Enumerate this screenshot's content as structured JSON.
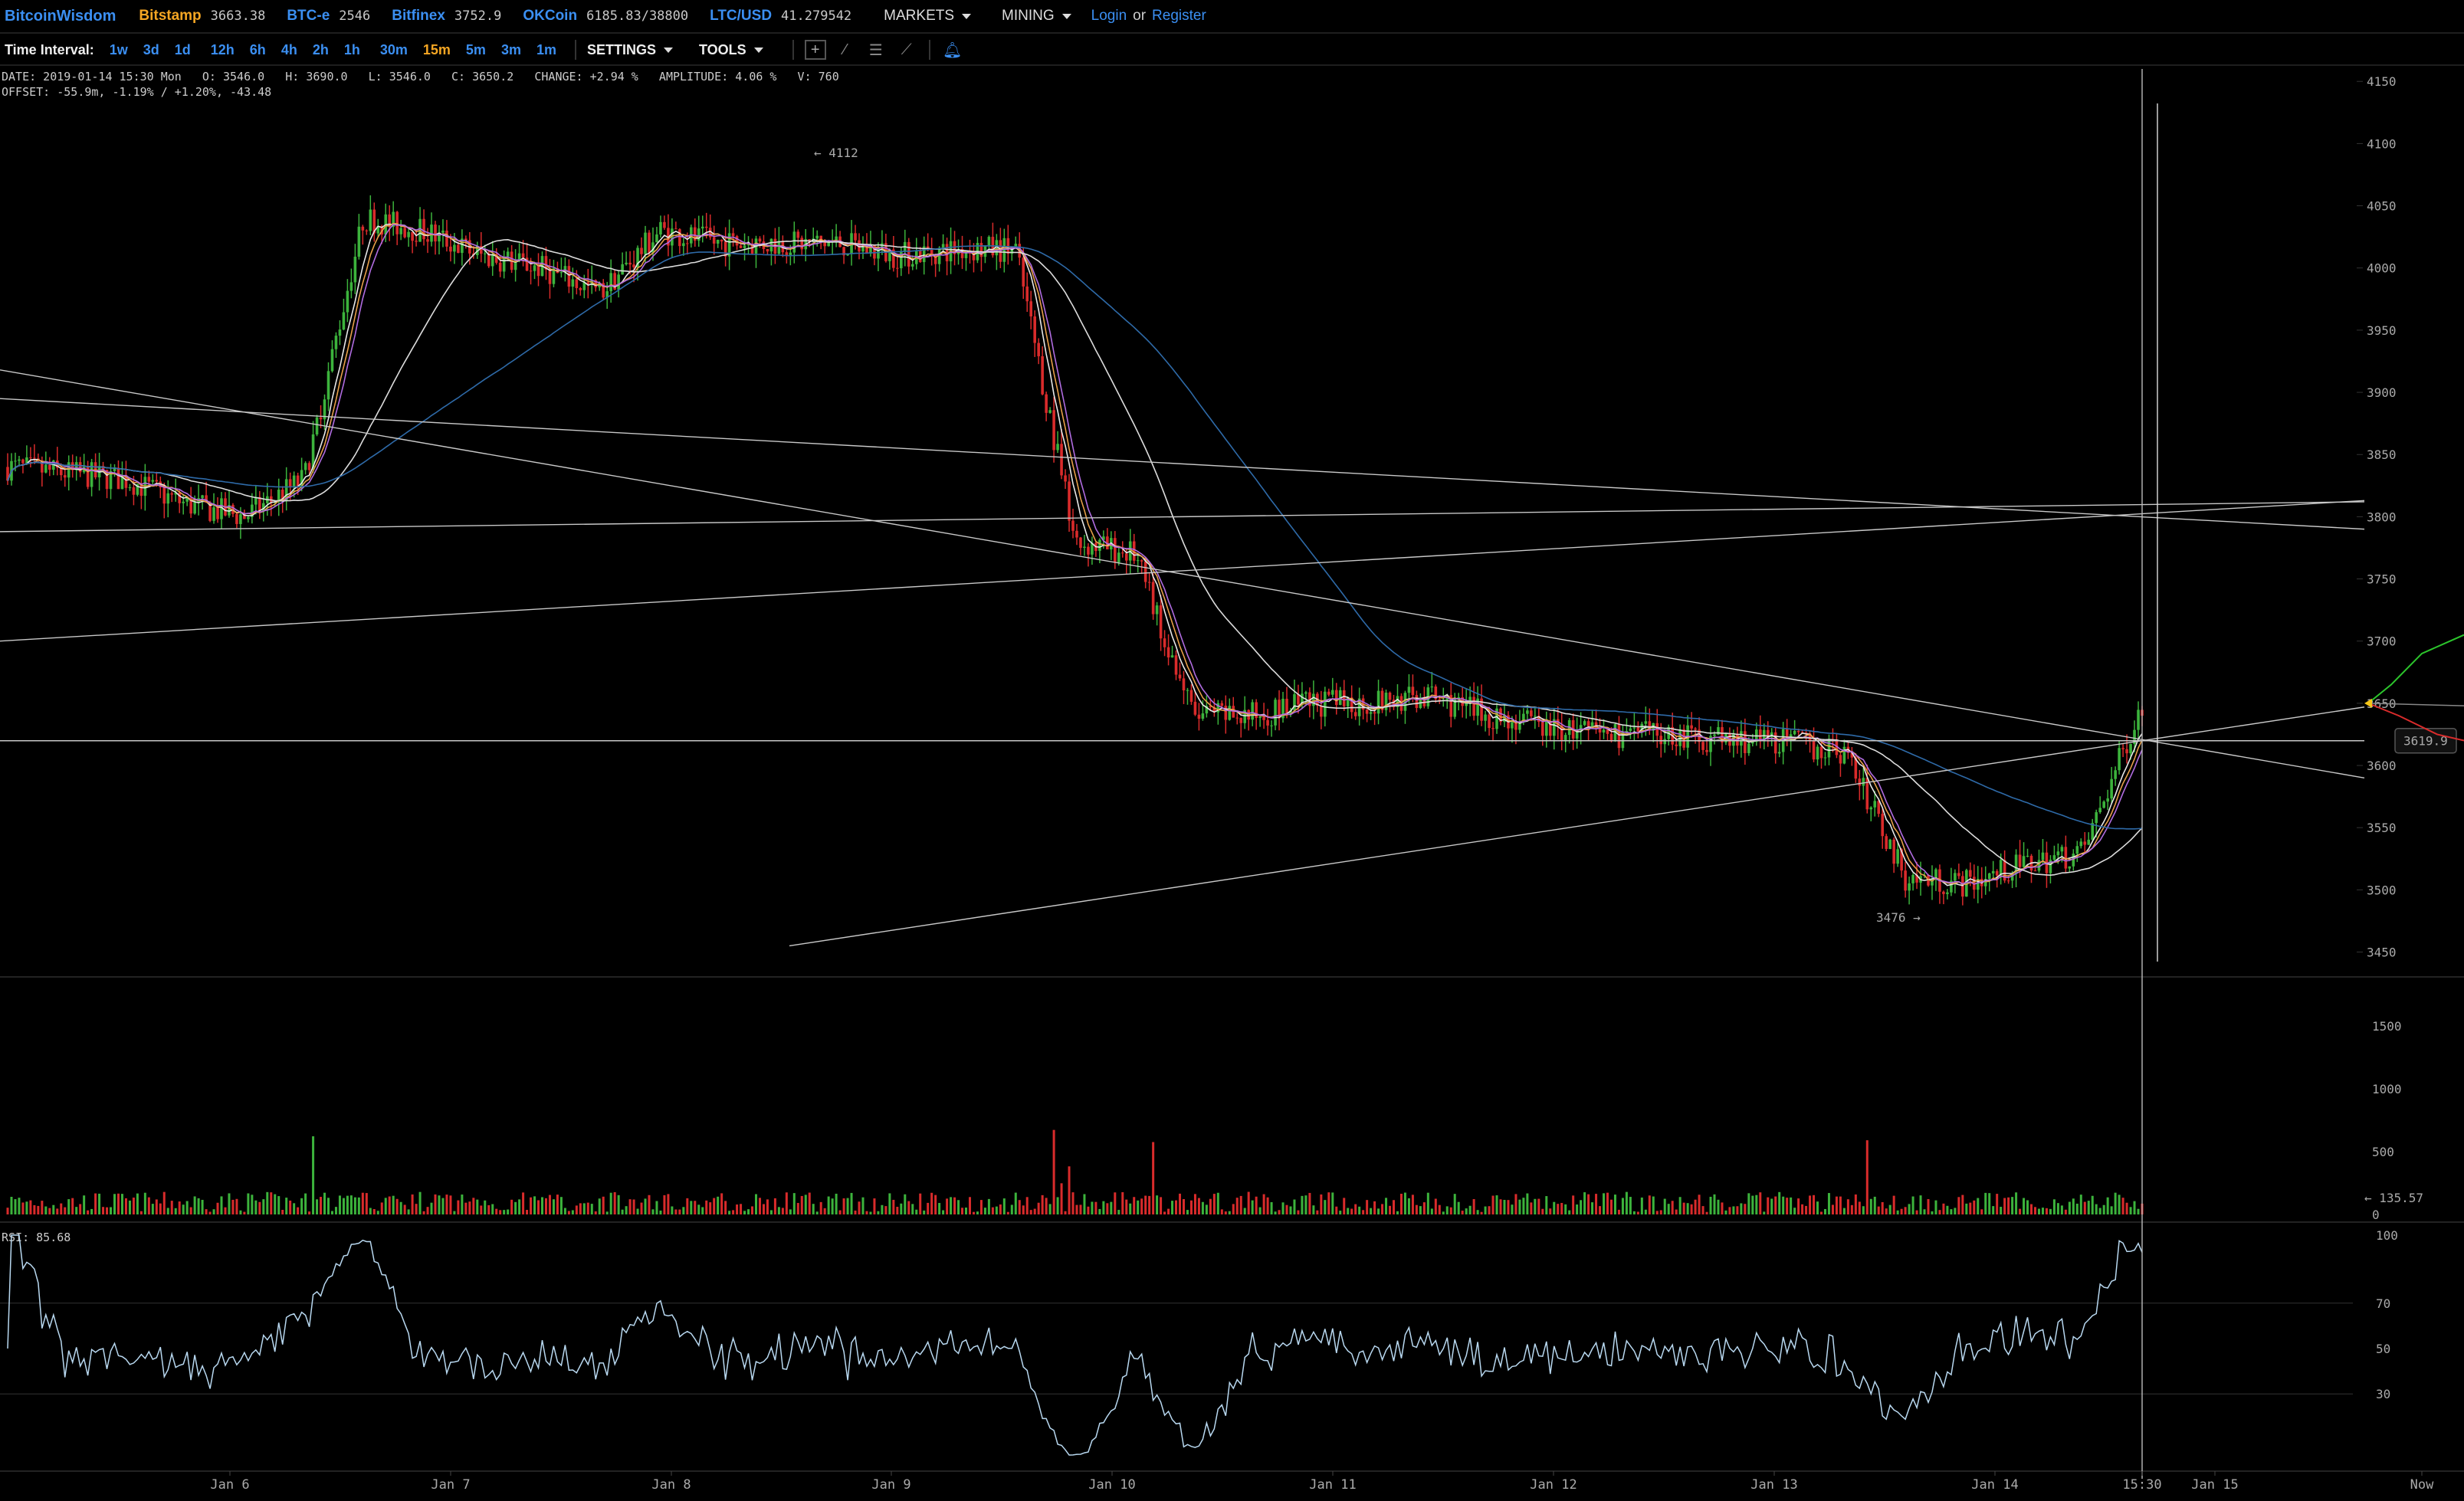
{
  "brand": "BitcoinWisdom",
  "tickers": [
    {
      "exchange": "Bitstamp",
      "price": "3663.38",
      "active": true
    },
    {
      "exchange": "BTC-e",
      "price": "2546",
      "active": false
    },
    {
      "exchange": "Bitfinex",
      "price": "3752.9",
      "active": false
    },
    {
      "exchange": "OKCoin",
      "price": "6185.83/38800",
      "active": false
    },
    {
      "exchange": "LTC/USD",
      "price": "41.279542",
      "active": false
    }
  ],
  "menus": {
    "markets": "MARKETS",
    "mining": "MINING",
    "login": "Login",
    "or": "or",
    "register": "Register"
  },
  "toolbar": {
    "label": "Time Interval:",
    "intervals": [
      "1w",
      "3d",
      "1d",
      "12h",
      "6h",
      "4h",
      "2h",
      "1h",
      "30m",
      "15m",
      "5m",
      "3m",
      "1m"
    ],
    "active_interval": "15m",
    "settings": "SETTINGS",
    "tools": "TOOLS"
  },
  "info": {
    "line1": "DATE: 2019-01-14 15:30 Mon   O: 3546.0   H: 3690.0   L: 3546.0   C: 3650.2   CHANGE: +2.94 %   AMPLITUDE: 4.06 %   V: 760",
    "line2": "OFFSET: -55.9m, -1.19% / +1.20%, -43.48"
  },
  "rsi_label": "RSI: 85.68",
  "price_axis": [
    "4150",
    "4100",
    "4050",
    "4000",
    "3950",
    "3900",
    "3850",
    "3800",
    "3750",
    "3700",
    "3650",
    "3600",
    "3550",
    "3500",
    "3450"
  ],
  "volume_axis": [
    "1500",
    "1000",
    "500",
    "0"
  ],
  "rsi_axis": [
    "100",
    "70",
    "50",
    "30"
  ],
  "date_axis": [
    "Jan 6",
    "Jan 7",
    "Jan 8",
    "Jan 9",
    "Jan 10",
    "Jan 11",
    "Jan 12",
    "Jan 13",
    "Jan 14",
    "15:30",
    "Jan 15",
    "Now"
  ],
  "annotations": {
    "high": "← 4112",
    "low": "3476 →",
    "crosshair_price": "3619.9",
    "volume_marker": "← 135.57"
  },
  "colors": {
    "accent": "#3b8ff2",
    "active": "#f5a623",
    "up": "#3cb33c",
    "down": "#d92b2b",
    "bg": "#000000"
  },
  "chart_data": {
    "type": "line",
    "ylim": [
      3430,
      4160
    ],
    "x": [
      "Jan 5 18:00",
      "Jan 6 00:00",
      "Jan 6 06:00",
      "Jan 6 12:00",
      "Jan 6 18:00",
      "Jan 7 00:00",
      "Jan 7 06:00",
      "Jan 7 12:00",
      "Jan 7 18:00",
      "Jan 8 00:00",
      "Jan 8 06:00",
      "Jan 8 12:00",
      "Jan 8 18:00",
      "Jan 9 00:00",
      "Jan 9 06:00",
      "Jan 9 12:00",
      "Jan 9 18:00",
      "Jan 10 00:00",
      "Jan 10 06:00",
      "Jan 10 12:00",
      "Jan 10 18:00",
      "Jan 11 00:00",
      "Jan 11 06:00",
      "Jan 11 12:00",
      "Jan 11 18:00",
      "Jan 12 00:00",
      "Jan 12 06:00",
      "Jan 12 12:00",
      "Jan 12 18:00",
      "Jan 13 00:00",
      "Jan 13 06:00",
      "Jan 13 12:00",
      "Jan 13 18:00",
      "Jan 14 00:00",
      "Jan 14 06:00",
      "Jan 14 12:00",
      "Jan 14 15:30"
    ],
    "series": [
      {
        "values": [
          3840,
          3835,
          3830,
          3810,
          3800,
          3830,
          4040,
          4030,
          4010,
          4000,
          3980,
          4030,
          4020,
          4020,
          4020,
          4010,
          4015,
          4015,
          3780,
          3770,
          3640,
          3640,
          3650,
          3650,
          3655,
          3640,
          3630,
          3625,
          3625,
          3620,
          3620,
          3610,
          3510,
          3505,
          3520,
          3530,
          3650
        ]
      }
    ]
  }
}
